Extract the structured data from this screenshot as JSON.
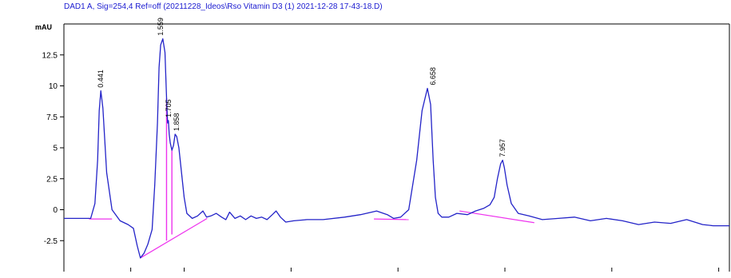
{
  "chart_data": {
    "type": "line",
    "title": "DAD1 A, Sig=254,4 Ref=off (20211228_Ideos\\Rso Vitamin D3 (1) 2021-12-28 17-43-18.D)",
    "ylabel": "mAU",
    "xlabel": "",
    "xlim": [
      -0.25,
      12.2
    ],
    "ylim": [
      -5.0,
      15.0
    ],
    "y_ticks": [
      12.5,
      10,
      7.5,
      5,
      2.5,
      0,
      -2.5
    ],
    "y_tick_labels": [
      "12.5",
      "10",
      "7.5",
      "5",
      "2.5",
      "0",
      "-2.5"
    ],
    "x_ticks": [
      1,
      2,
      4,
      6,
      8,
      10,
      12
    ],
    "x_tick_labels": [
      "",
      "",
      "",
      "",
      "",
      "",
      ""
    ],
    "grid": false,
    "series": [
      {
        "color": "#2323c8",
        "x": [
          -0.25,
          0.25,
          0.33,
          0.38,
          0.41,
          0.44,
          0.48,
          0.55,
          0.65,
          0.8,
          0.95,
          1.05,
          1.12,
          1.18,
          1.25,
          1.32,
          1.4,
          1.45,
          1.5,
          1.53,
          1.56,
          1.6,
          1.64,
          1.67,
          1.69,
          1.705,
          1.72,
          1.74,
          1.77,
          1.8,
          1.83,
          1.86,
          1.9,
          1.95,
          2.0,
          2.05,
          2.15,
          2.25,
          2.35,
          2.42,
          2.5,
          2.6,
          2.7,
          2.78,
          2.85,
          2.95,
          3.05,
          3.15,
          3.25,
          3.35,
          3.45,
          3.55,
          3.65,
          3.72,
          3.8,
          3.9,
          4.05,
          4.3,
          4.6,
          5.0,
          5.3,
          5.6,
          5.8,
          5.92,
          6.05,
          6.2,
          6.35,
          6.45,
          6.55,
          6.61,
          6.658,
          6.7,
          6.75,
          6.82,
          6.95,
          7.1,
          7.3,
          7.45,
          7.6,
          7.72,
          7.8,
          7.86,
          7.92,
          7.957,
          7.99,
          8.04,
          8.12,
          8.25,
          8.45,
          8.7,
          9.0,
          9.3,
          9.6,
          9.9,
          10.2,
          10.5,
          10.8,
          11.1,
          11.4,
          11.7,
          11.9,
          12.2
        ],
        "y": [
          -0.7,
          -0.7,
          0.5,
          4.0,
          8.0,
          9.6,
          8.2,
          3.0,
          0.0,
          -0.9,
          -1.2,
          -1.5,
          -2.9,
          -3.9,
          -3.5,
          -2.8,
          -1.6,
          2.0,
          7.0,
          11.5,
          13.3,
          13.8,
          12.7,
          9.0,
          7.0,
          7.2,
          6.1,
          5.4,
          4.8,
          5.2,
          6.1,
          5.9,
          5.0,
          3.0,
          1.0,
          -0.3,
          -0.7,
          -0.5,
          -0.1,
          -0.6,
          -0.5,
          -0.3,
          -0.6,
          -0.8,
          -0.2,
          -0.7,
          -0.5,
          -0.8,
          -0.5,
          -0.7,
          -0.6,
          -0.8,
          -0.4,
          -0.1,
          -0.6,
          -1.0,
          -0.9,
          -0.8,
          -0.8,
          -0.6,
          -0.4,
          -0.1,
          -0.4,
          -0.7,
          -0.6,
          0.0,
          4.0,
          8.0,
          9.8,
          8.5,
          4.0,
          1.0,
          -0.3,
          -0.6,
          -0.6,
          -0.3,
          -0.4,
          -0.1,
          0.1,
          0.4,
          1.0,
          2.5,
          3.7,
          4.0,
          3.4,
          2.0,
          0.5,
          -0.3,
          -0.5,
          -0.8,
          -0.7,
          -0.6,
          -0.9,
          -0.7,
          -0.9,
          -1.2,
          -1.0,
          -1.1,
          -0.8,
          -1.2,
          -1.3,
          -1.3
        ]
      }
    ],
    "baselines": {
      "color": "#ee33ee",
      "segments": [
        {
          "x": [
            0.22,
            0.65
          ],
          "y": [
            -0.75,
            -0.75
          ]
        },
        {
          "x": [
            1.18,
            2.43
          ],
          "y": [
            -3.9,
            -0.7
          ]
        },
        {
          "x": [
            5.55,
            6.2
          ],
          "y": [
            -0.75,
            -0.8
          ]
        },
        {
          "x": [
            7.15,
            8.55
          ],
          "y": [
            -0.1,
            -1.05
          ]
        }
      ],
      "drop_lines": [
        {
          "x": 1.67,
          "y_top": 9.0,
          "y_bottom": -2.5
        },
        {
          "x": 1.77,
          "y_top": 4.8,
          "y_bottom": -2.0
        }
      ]
    },
    "peak_labels": [
      {
        "x": 0.441,
        "y": 9.6,
        "text": "0.441"
      },
      {
        "x": 1.559,
        "y": 13.8,
        "text": "1.559"
      },
      {
        "x": 1.705,
        "y": 7.2,
        "text": "1.705"
      },
      {
        "x": 1.858,
        "y": 6.1,
        "text": "1.858"
      },
      {
        "x": 6.658,
        "y": 9.8,
        "text": "6.658"
      },
      {
        "x": 7.957,
        "y": 4.0,
        "text": "7.957"
      }
    ]
  }
}
